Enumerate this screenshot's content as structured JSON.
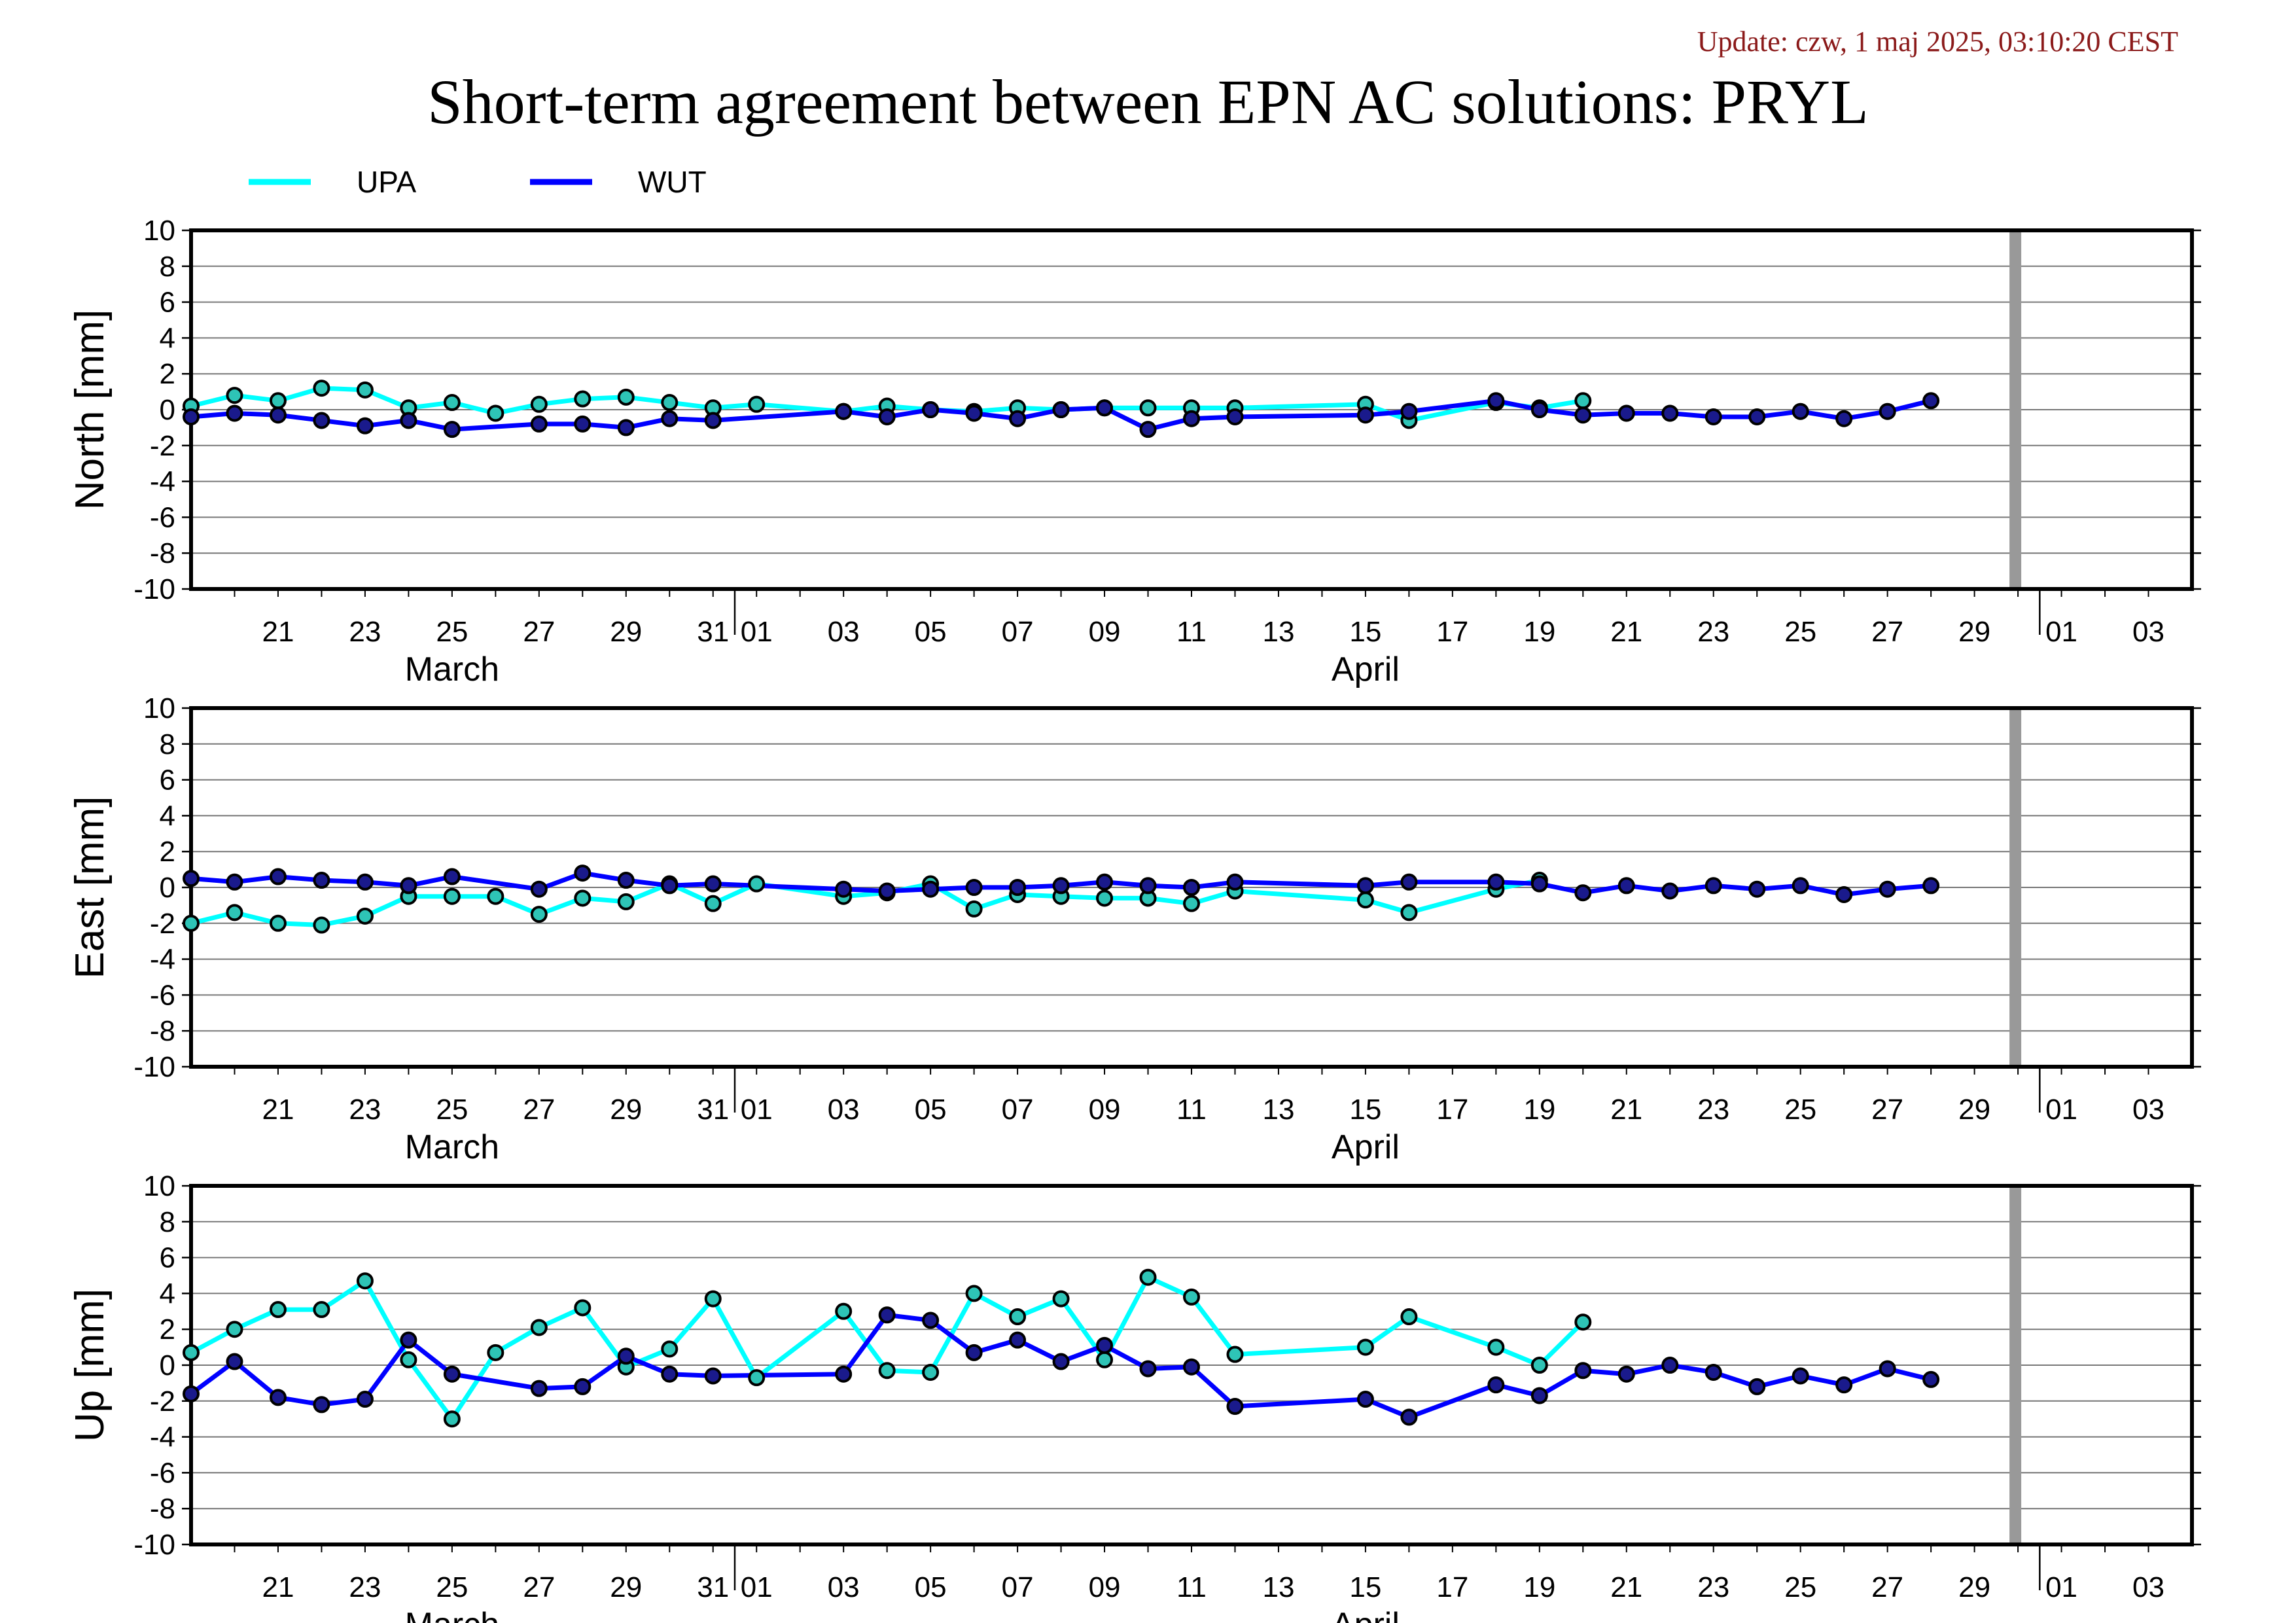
{
  "header": {
    "update_text": "Update: czw, 1 maj 2025, 03:10:20 CEST",
    "title": "Short-term agreement between EPN AC solutions: PRYL"
  },
  "colors": {
    "UPA": "#00ffff",
    "WUT": "#0000ff",
    "marker_UPA": "#2ec4b6",
    "marker_WUT": "#1a1a8c",
    "cutoff": "#999999"
  },
  "chart_data": {
    "type": "line",
    "x_unit": "date",
    "xlim": [
      "2025-03-19",
      "2025-05-04"
    ],
    "cutoff_date": "2025-04-30",
    "x_ticks": [
      {
        "date": "2025-03-21",
        "label": "21"
      },
      {
        "date": "2025-03-23",
        "label": "23"
      },
      {
        "date": "2025-03-25",
        "label": "25"
      },
      {
        "date": "2025-03-27",
        "label": "27"
      },
      {
        "date": "2025-03-29",
        "label": "29"
      },
      {
        "date": "2025-03-31",
        "label": "31"
      },
      {
        "date": "2025-04-01",
        "label": "01"
      },
      {
        "date": "2025-04-03",
        "label": "03"
      },
      {
        "date": "2025-04-05",
        "label": "05"
      },
      {
        "date": "2025-04-07",
        "label": "07"
      },
      {
        "date": "2025-04-09",
        "label": "09"
      },
      {
        "date": "2025-04-11",
        "label": "11"
      },
      {
        "date": "2025-04-13",
        "label": "13"
      },
      {
        "date": "2025-04-15",
        "label": "15"
      },
      {
        "date": "2025-04-17",
        "label": "17"
      },
      {
        "date": "2025-04-19",
        "label": "19"
      },
      {
        "date": "2025-04-21",
        "label": "21"
      },
      {
        "date": "2025-04-23",
        "label": "23"
      },
      {
        "date": "2025-04-25",
        "label": "25"
      },
      {
        "date": "2025-04-27",
        "label": "27"
      },
      {
        "date": "2025-04-29",
        "label": "29"
      },
      {
        "date": "2025-05-01",
        "label": "01"
      },
      {
        "date": "2025-05-03",
        "label": "03"
      }
    ],
    "month_labels": [
      {
        "date": "2025-03-25",
        "label": "March"
      },
      {
        "date": "2025-04-15",
        "label": "April"
      }
    ],
    "y_ticks": [
      10,
      8,
      6,
      4,
      2,
      0,
      -2,
      -4,
      -6,
      -8,
      -10
    ],
    "legend": [
      {
        "name": "UPA"
      },
      {
        "name": "WUT"
      }
    ],
    "panels": [
      {
        "ylabel": "North [mm]",
        "ylim": [
          -10,
          10
        ],
        "series": [
          {
            "name": "UPA",
            "points": [
              [
                "2025-03-19",
                0.2
              ],
              [
                "2025-03-20",
                0.8
              ],
              [
                "2025-03-21",
                0.5
              ],
              [
                "2025-03-22",
                1.2
              ],
              [
                "2025-03-23",
                1.1
              ],
              [
                "2025-03-24",
                0.1
              ],
              [
                "2025-03-25",
                0.4
              ],
              [
                "2025-03-26",
                -0.2
              ],
              [
                "2025-03-27",
                0.3
              ],
              [
                "2025-03-28",
                0.6
              ],
              [
                "2025-03-29",
                0.7
              ],
              [
                "2025-03-30",
                0.4
              ],
              [
                "2025-03-31",
                0.1
              ],
              [
                "2025-04-01",
                0.3
              ],
              [
                "2025-04-03",
                -0.1
              ],
              [
                "2025-04-04",
                0.2
              ],
              [
                "2025-04-05",
                0.0
              ],
              [
                "2025-04-06",
                -0.1
              ],
              [
                "2025-04-07",
                0.1
              ],
              [
                "2025-04-08",
                0.0
              ],
              [
                "2025-04-09",
                0.1
              ],
              [
                "2025-04-10",
                0.1
              ],
              [
                "2025-04-11",
                0.1
              ],
              [
                "2025-04-12",
                0.1
              ],
              [
                "2025-04-15",
                0.3
              ],
              [
                "2025-04-16",
                -0.6
              ],
              [
                "2025-04-18",
                0.4
              ],
              [
                "2025-04-19",
                0.1
              ],
              [
                "2025-04-20",
                0.5
              ]
            ]
          },
          {
            "name": "WUT",
            "points": [
              [
                "2025-03-19",
                -0.4
              ],
              [
                "2025-03-20",
                -0.2
              ],
              [
                "2025-03-21",
                -0.3
              ],
              [
                "2025-03-22",
                -0.6
              ],
              [
                "2025-03-23",
                -0.9
              ],
              [
                "2025-03-24",
                -0.6
              ],
              [
                "2025-03-25",
                -1.1
              ],
              [
                "2025-03-27",
                -0.8
              ],
              [
                "2025-03-28",
                -0.8
              ],
              [
                "2025-03-29",
                -1.0
              ],
              [
                "2025-03-30",
                -0.5
              ],
              [
                "2025-03-31",
                -0.6
              ],
              [
                "2025-04-03",
                -0.1
              ],
              [
                "2025-04-04",
                -0.4
              ],
              [
                "2025-04-05",
                0.0
              ],
              [
                "2025-04-06",
                -0.2
              ],
              [
                "2025-04-07",
                -0.5
              ],
              [
                "2025-04-08",
                0.0
              ],
              [
                "2025-04-09",
                0.1
              ],
              [
                "2025-04-10",
                -1.1
              ],
              [
                "2025-04-11",
                -0.5
              ],
              [
                "2025-04-12",
                -0.4
              ],
              [
                "2025-04-15",
                -0.3
              ],
              [
                "2025-04-16",
                -0.1
              ],
              [
                "2025-04-18",
                0.5
              ],
              [
                "2025-04-19",
                0.0
              ],
              [
                "2025-04-20",
                -0.3
              ],
              [
                "2025-04-21",
                -0.2
              ],
              [
                "2025-04-22",
                -0.2
              ],
              [
                "2025-04-23",
                -0.4
              ],
              [
                "2025-04-24",
                -0.4
              ],
              [
                "2025-04-25",
                -0.1
              ],
              [
                "2025-04-26",
                -0.5
              ],
              [
                "2025-04-27",
                -0.1
              ],
              [
                "2025-04-28",
                0.5
              ]
            ]
          }
        ]
      },
      {
        "ylabel": "East [mm]",
        "ylim": [
          -10,
          10
        ],
        "series": [
          {
            "name": "UPA",
            "points": [
              [
                "2025-03-19",
                -2.0
              ],
              [
                "2025-03-20",
                -1.4
              ],
              [
                "2025-03-21",
                -2.0
              ],
              [
                "2025-03-22",
                -2.1
              ],
              [
                "2025-03-23",
                -1.6
              ],
              [
                "2025-03-24",
                -0.5
              ],
              [
                "2025-03-25",
                -0.5
              ],
              [
                "2025-03-26",
                -0.5
              ],
              [
                "2025-03-27",
                -1.5
              ],
              [
                "2025-03-28",
                -0.6
              ],
              [
                "2025-03-29",
                -0.8
              ],
              [
                "2025-03-30",
                0.2
              ],
              [
                "2025-03-31",
                -0.9
              ],
              [
                "2025-04-01",
                0.2
              ],
              [
                "2025-04-03",
                -0.5
              ],
              [
                "2025-04-04",
                -0.3
              ],
              [
                "2025-04-05",
                0.2
              ],
              [
                "2025-04-06",
                -1.2
              ],
              [
                "2025-04-07",
                -0.4
              ],
              [
                "2025-04-08",
                -0.5
              ],
              [
                "2025-04-09",
                -0.6
              ],
              [
                "2025-04-10",
                -0.6
              ],
              [
                "2025-04-11",
                -0.9
              ],
              [
                "2025-04-12",
                -0.2
              ],
              [
                "2025-04-15",
                -0.7
              ],
              [
                "2025-04-16",
                -1.4
              ],
              [
                "2025-04-18",
                -0.1
              ],
              [
                "2025-04-19",
                0.4
              ]
            ]
          },
          {
            "name": "WUT",
            "points": [
              [
                "2025-03-19",
                0.5
              ],
              [
                "2025-03-20",
                0.3
              ],
              [
                "2025-03-21",
                0.6
              ],
              [
                "2025-03-22",
                0.4
              ],
              [
                "2025-03-23",
                0.3
              ],
              [
                "2025-03-24",
                0.1
              ],
              [
                "2025-03-25",
                0.6
              ],
              [
                "2025-03-27",
                -0.1
              ],
              [
                "2025-03-28",
                0.8
              ],
              [
                "2025-03-29",
                0.4
              ],
              [
                "2025-03-30",
                0.1
              ],
              [
                "2025-03-31",
                0.2
              ],
              [
                "2025-04-03",
                -0.1
              ],
              [
                "2025-04-04",
                -0.2
              ],
              [
                "2025-04-05",
                -0.1
              ],
              [
                "2025-04-06",
                0.0
              ],
              [
                "2025-04-07",
                0.0
              ],
              [
                "2025-04-08",
                0.1
              ],
              [
                "2025-04-09",
                0.3
              ],
              [
                "2025-04-10",
                0.1
              ],
              [
                "2025-04-11",
                0.0
              ],
              [
                "2025-04-12",
                0.3
              ],
              [
                "2025-04-15",
                0.1
              ],
              [
                "2025-04-16",
                0.3
              ],
              [
                "2025-04-18",
                0.3
              ],
              [
                "2025-04-19",
                0.2
              ],
              [
                "2025-04-20",
                -0.3
              ],
              [
                "2025-04-21",
                0.1
              ],
              [
                "2025-04-22",
                -0.2
              ],
              [
                "2025-04-23",
                0.1
              ],
              [
                "2025-04-24",
                -0.1
              ],
              [
                "2025-04-25",
                0.1
              ],
              [
                "2025-04-26",
                -0.4
              ],
              [
                "2025-04-27",
                -0.1
              ],
              [
                "2025-04-28",
                0.1
              ]
            ]
          }
        ]
      },
      {
        "ylabel": "Up [mm]",
        "ylim": [
          -10,
          10
        ],
        "series": [
          {
            "name": "UPA",
            "points": [
              [
                "2025-03-19",
                0.7
              ],
              [
                "2025-03-20",
                2.0
              ],
              [
                "2025-03-21",
                3.1
              ],
              [
                "2025-03-22",
                3.1
              ],
              [
                "2025-03-23",
                4.7
              ],
              [
                "2025-03-24",
                0.3
              ],
              [
                "2025-03-25",
                -3.0
              ],
              [
                "2025-03-26",
                0.7
              ],
              [
                "2025-03-27",
                2.1
              ],
              [
                "2025-03-28",
                3.2
              ],
              [
                "2025-03-29",
                -0.1
              ],
              [
                "2025-03-30",
                0.9
              ],
              [
                "2025-03-31",
                3.7
              ],
              [
                "2025-04-01",
                -0.7
              ],
              [
                "2025-04-03",
                3.0
              ],
              [
                "2025-04-04",
                -0.3
              ],
              [
                "2025-04-05",
                -0.4
              ],
              [
                "2025-04-06",
                4.0
              ],
              [
                "2025-04-07",
                2.7
              ],
              [
                "2025-04-08",
                3.7
              ],
              [
                "2025-04-09",
                0.3
              ],
              [
                "2025-04-10",
                4.9
              ],
              [
                "2025-04-11",
                3.8
              ],
              [
                "2025-04-12",
                0.6
              ],
              [
                "2025-04-15",
                1.0
              ],
              [
                "2025-04-16",
                2.7
              ],
              [
                "2025-04-18",
                1.0
              ],
              [
                "2025-04-19",
                0.0
              ],
              [
                "2025-04-20",
                2.4
              ]
            ]
          },
          {
            "name": "WUT",
            "points": [
              [
                "2025-03-19",
                -1.6
              ],
              [
                "2025-03-20",
                0.2
              ],
              [
                "2025-03-21",
                -1.8
              ],
              [
                "2025-03-22",
                -2.2
              ],
              [
                "2025-03-23",
                -1.9
              ],
              [
                "2025-03-24",
                1.4
              ],
              [
                "2025-03-25",
                -0.5
              ],
              [
                "2025-03-27",
                -1.3
              ],
              [
                "2025-03-28",
                -1.2
              ],
              [
                "2025-03-29",
                0.5
              ],
              [
                "2025-03-30",
                -0.5
              ],
              [
                "2025-03-31",
                -0.6
              ],
              [
                "2025-04-03",
                -0.5
              ],
              [
                "2025-04-04",
                2.8
              ],
              [
                "2025-04-05",
                2.5
              ],
              [
                "2025-04-06",
                0.7
              ],
              [
                "2025-04-07",
                1.4
              ],
              [
                "2025-04-08",
                0.2
              ],
              [
                "2025-04-09",
                1.1
              ],
              [
                "2025-04-10",
                -0.2
              ],
              [
                "2025-04-11",
                -0.1
              ],
              [
                "2025-04-12",
                -2.3
              ],
              [
                "2025-04-15",
                -1.9
              ],
              [
                "2025-04-16",
                -2.9
              ],
              [
                "2025-04-18",
                -1.1
              ],
              [
                "2025-04-19",
                -1.7
              ],
              [
                "2025-04-20",
                -0.3
              ],
              [
                "2025-04-21",
                -0.5
              ],
              [
                "2025-04-22",
                0.0
              ],
              [
                "2025-04-23",
                -0.4
              ],
              [
                "2025-04-24",
                -1.2
              ],
              [
                "2025-04-25",
                -0.6
              ],
              [
                "2025-04-26",
                -1.1
              ],
              [
                "2025-04-27",
                -0.2
              ],
              [
                "2025-04-28",
                -0.8
              ]
            ]
          }
        ]
      }
    ]
  }
}
